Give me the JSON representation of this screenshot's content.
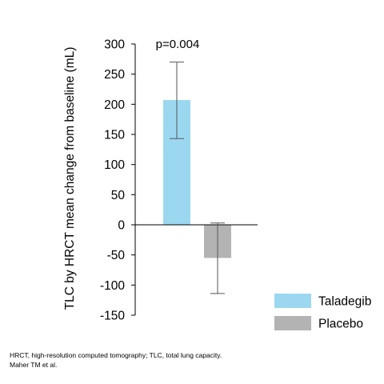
{
  "chart_data": {
    "type": "bar",
    "ylabel": "TLC by HRCT mean change from baseline (mL)",
    "ylim": [
      -150,
      300
    ],
    "yticks": [
      300,
      250,
      200,
      150,
      100,
      50,
      0,
      -50,
      -100,
      -150
    ],
    "grid": false,
    "legend_position": "bottom-right",
    "annotation": "p=0.004",
    "series": [
      {
        "name": "Taladegib",
        "value": 207,
        "error_low": 143,
        "error_high": 270,
        "color": "#9bd8f0"
      },
      {
        "name": "Placebo",
        "value": -55,
        "error_low": -114,
        "error_high": 3,
        "color": "#b3b3b3"
      }
    ]
  },
  "footnotes": {
    "line1": "HRCT, high-resolution computed tomography; TLC, total lung capacity.",
    "line2": "Maher TM et al."
  }
}
